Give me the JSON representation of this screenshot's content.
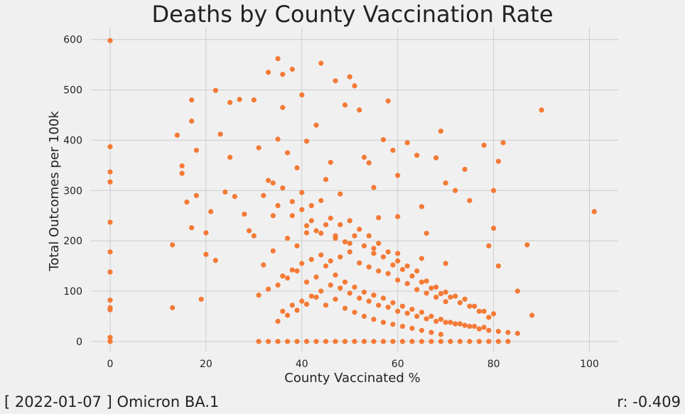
{
  "chart_data": {
    "type": "scatter",
    "title": "Deaths by County Vaccination Rate",
    "xlabel": "County Vaccinated %",
    "ylabel": "Total Outcomes per 100k",
    "xlim": [
      -4,
      106
    ],
    "ylim": [
      -20,
      625
    ],
    "xticks": [
      0,
      20,
      40,
      60,
      80,
      100
    ],
    "yticks": [
      0,
      100,
      200,
      300,
      400,
      500,
      600
    ],
    "grid": true,
    "color": "#f47a36",
    "series": [
      {
        "x": [
          0,
          0,
          0,
          0,
          0,
          0,
          0,
          0,
          0,
          0,
          0,
          0,
          13,
          13,
          14,
          15,
          15,
          16,
          17,
          17,
          17,
          18,
          18,
          19,
          20,
          20,
          21,
          22,
          22,
          23,
          24,
          25,
          25,
          26,
          27,
          28,
          29,
          30,
          30,
          31,
          31,
          32,
          33,
          34,
          35,
          35,
          36,
          36,
          37,
          38,
          39,
          40,
          40,
          41,
          42,
          43,
          44,
          45,
          46,
          47,
          48,
          49,
          50,
          51,
          52,
          53,
          54,
          55,
          56,
          57,
          58,
          59,
          60,
          60,
          62,
          64,
          65,
          66,
          68,
          69,
          70,
          72,
          74,
          75,
          78,
          79,
          80,
          80,
          81,
          81,
          82,
          85,
          87,
          88,
          90,
          101,
          35,
          38,
          41,
          44,
          47,
          50,
          55,
          60,
          65,
          70,
          32,
          33,
          34,
          36,
          38,
          40,
          42,
          44,
          46,
          48,
          50,
          52,
          54,
          56,
          58,
          60,
          62,
          64,
          66,
          68,
          70,
          72,
          74,
          76,
          78,
          80,
          34,
          37,
          39,
          41,
          43,
          45,
          47,
          49,
          51,
          53,
          55,
          57,
          59,
          61,
          63,
          65,
          67,
          69,
          71,
          73,
          75,
          77,
          79,
          36,
          38,
          40,
          42,
          44,
          46,
          48,
          50,
          52,
          54,
          56,
          58,
          60,
          62,
          64,
          66,
          68,
          70,
          31,
          33,
          35,
          37,
          39,
          41,
          43,
          45,
          47,
          49,
          51,
          53,
          55,
          57,
          59,
          61,
          63,
          65,
          67,
          69,
          71,
          73,
          75,
          77,
          79,
          81,
          83,
          85,
          36,
          38,
          40,
          42,
          44,
          46,
          48,
          50,
          52,
          54,
          56,
          58,
          60,
          62,
          64,
          66,
          68,
          70,
          72,
          74,
          76,
          78,
          35,
          37,
          39,
          41,
          43,
          45,
          47,
          49,
          51,
          53,
          55,
          57,
          59,
          61,
          63,
          65,
          67,
          69,
          33,
          35,
          37,
          39,
          41,
          43,
          45,
          47,
          49,
          51,
          53,
          55,
          57,
          59,
          61,
          63,
          65,
          67,
          69,
          71,
          73,
          75,
          77,
          79,
          81,
          83
        ],
        "y": [
          598,
          387,
          337,
          317,
          237,
          178,
          138,
          82,
          67,
          63,
          8,
          0,
          67,
          192,
          410,
          349,
          334,
          277,
          480,
          438,
          226,
          380,
          290,
          84,
          216,
          173,
          258,
          499,
          161,
          412,
          297,
          475,
          366,
          288,
          481,
          253,
          220,
          480,
          210,
          0,
          385,
          152,
          535,
          315,
          562,
          402,
          465,
          531,
          375,
          541,
          345,
          490,
          296,
          398,
          240,
          430,
          553,
          322,
          356,
          518,
          293,
          470,
          526,
          508,
          460,
          366,
          355,
          306,
          246,
          401,
          478,
          380,
          330,
          248,
          395,
          370,
          268,
          215,
          365,
          418,
          315,
          300,
          342,
          280,
          390,
          190,
          300,
          225,
          150,
          358,
          395,
          100,
          192,
          52,
          460,
          258,
          270,
          250,
          230,
          215,
          205,
          195,
          185,
          175,
          165,
          155,
          290,
          320,
          250,
          305,
          278,
          262,
          270,
          280,
          245,
          232,
          240,
          223,
          210,
          195,
          178,
          160,
          150,
          140,
          120,
          108,
          98,
          90,
          84,
          70,
          60,
          55,
          180,
          205,
          190,
          216,
          220,
          232,
          210,
          198,
          210,
          190,
          175,
          168,
          152,
          143,
          130,
          118,
          106,
          95,
          88,
          77,
          70,
          60,
          48,
          130,
          142,
          155,
          163,
          172,
          160,
          168,
          178,
          156,
          148,
          140,
          135,
          122,
          115,
          103,
          96,
          88,
          79,
          92,
          104,
          112,
          126,
          140,
          118,
          128,
          150,
          132,
          118,
          108,
          98,
          92,
          86,
          77,
          70,
          64,
          58,
          50,
          44,
          38,
          35,
          30,
          25,
          22,
          20,
          18,
          16,
          60,
          72,
          80,
          90,
          100,
          112,
          106,
          96,
          86,
          80,
          72,
          68,
          60,
          56,
          50,
          45,
          40,
          38,
          35,
          32,
          30,
          28,
          40,
          52,
          62,
          74,
          88,
          72,
          84,
          66,
          58,
          50,
          44,
          38,
          34,
          30,
          26,
          22,
          18,
          14,
          0,
          0,
          0,
          0,
          0,
          0,
          0,
          0,
          0,
          0,
          0,
          0,
          0,
          0,
          0,
          0,
          0,
          0,
          0,
          0,
          0,
          0,
          0,
          0,
          0,
          0
        ]
      }
    ]
  },
  "footer": {
    "left": "[ 2022-01-07 ] Omicron BA.1",
    "right": "r: -0.409"
  }
}
